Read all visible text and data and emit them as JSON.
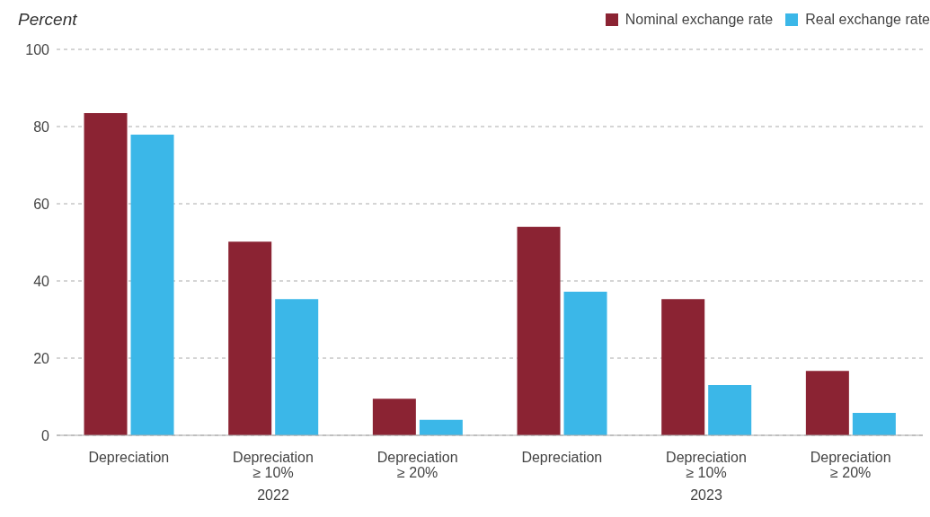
{
  "chart_data": {
    "type": "bar",
    "ylabel": "Percent",
    "categories": [
      "Depreciation",
      "Depreciation\n≥ 10%",
      "Depreciation\n≥ 20%",
      "Depreciation",
      "Depreciation\n≥ 10%",
      "Depreciation\n≥ 20%"
    ],
    "series": [
      {
        "name": "Nominal exchange rate",
        "color": "#8b2333",
        "values": [
          83.5,
          50.2,
          9.5,
          54,
          35.3,
          16.7
        ]
      },
      {
        "name": "Real exchange rate",
        "color": "#3bb7e8",
        "values": [
          77.9,
          35.3,
          4,
          37.2,
          13,
          5.8
        ]
      }
    ],
    "ylim": [
      0,
      100
    ],
    "yticks": [
      0,
      20,
      40,
      60,
      80,
      100
    ],
    "grid": "y",
    "legend": "top right",
    "annotations": [
      "2022",
      "2023"
    ]
  }
}
